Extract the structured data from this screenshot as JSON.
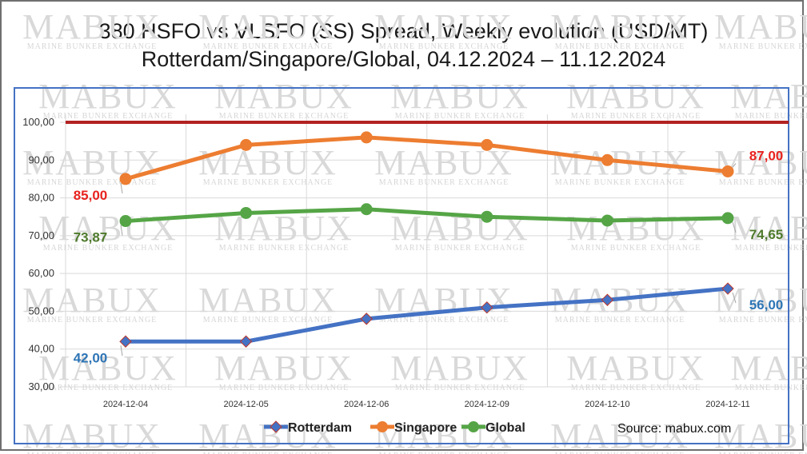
{
  "title_line1": "380 HSFO vs VLSFO (SS) Spread, Weekly evolution (USD/MT)",
  "title_line2": "Rotterdam/Singapore/Global, 04.12.2024 – 11.12.2024",
  "source": "Source: mabux.com",
  "watermark": {
    "big": "MABUX",
    "small": "MARINE BUNKER EXCHANGE"
  },
  "chart_data": {
    "type": "line",
    "categories": [
      "2024-12-04",
      "2024-12-05",
      "2024-12-06",
      "2024-12-09",
      "2024-12-10",
      "2024-12-11"
    ],
    "ylim": [
      30,
      100
    ],
    "yticks": [
      "30,00",
      "40,00",
      "50,00",
      "60,00",
      "70,00",
      "80,00",
      "90,00",
      "100,00"
    ],
    "grid": true,
    "legend_position": "bottom",
    "reference_line": {
      "value": 100,
      "color": "#b22222"
    },
    "series": [
      {
        "name": "Rotterdam",
        "values": [
          42,
          42,
          48,
          51,
          53,
          56
        ],
        "color": "#4472c4",
        "marker": "diamond",
        "first_label": "42,00",
        "last_label": "56,00",
        "label_color": "#2e75b6"
      },
      {
        "name": "Singapore",
        "values": [
          85,
          94,
          96,
          94,
          90,
          87
        ],
        "color": "#ed7d31",
        "marker": "circle",
        "first_label": "85,00",
        "last_label": "87,00",
        "label_color": "#e8231f"
      },
      {
        "name": "Global",
        "values": [
          73.87,
          76,
          77,
          75,
          74,
          74.65
        ],
        "color": "#55a546",
        "marker": "circle",
        "first_label": "73,87",
        "last_label": "74,65",
        "label_color": "#4e7a2c"
      }
    ]
  }
}
